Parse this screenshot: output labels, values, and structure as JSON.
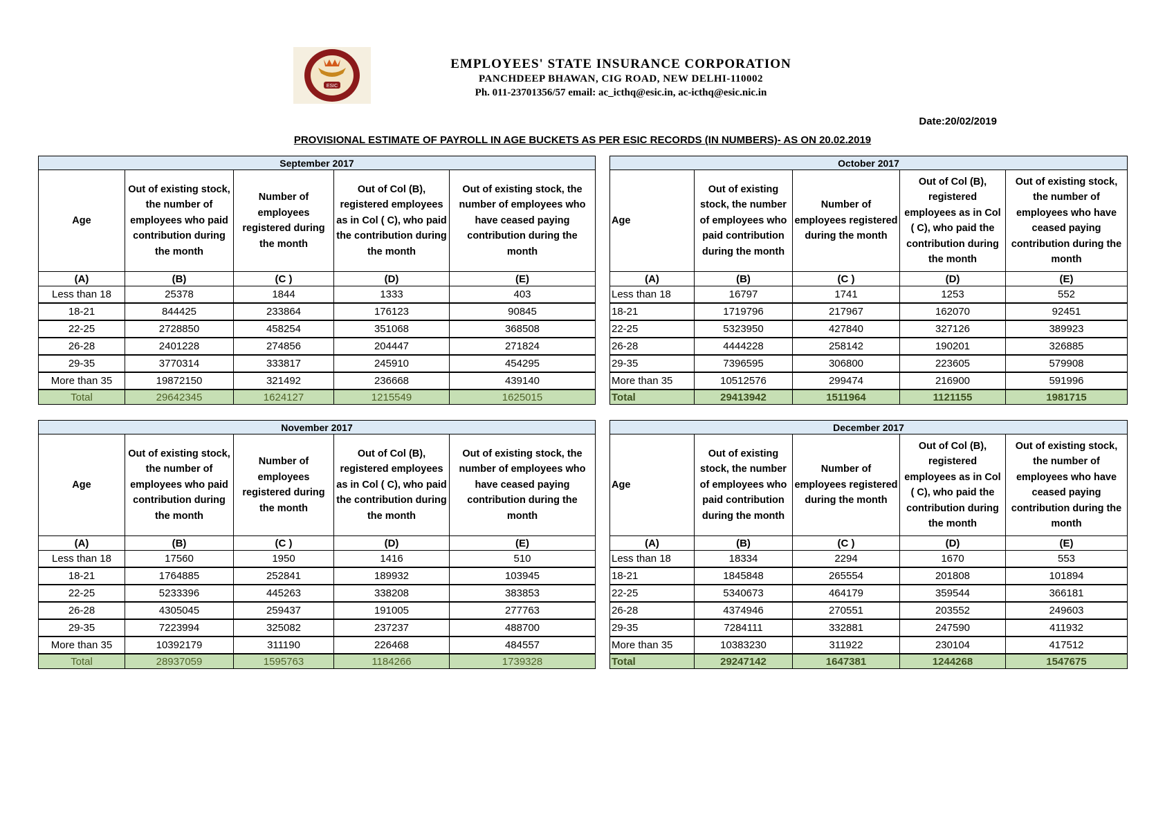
{
  "header": {
    "logo_text": "ESIC",
    "org_name": "EMPLOYEES' STATE INSURANCE CORPORATION",
    "address": "PANCHDEEP BHAWAN, CIG ROAD, NEW DELHI-110002",
    "contact": "Ph. 011-23701356/57 email: ac_icthq@esic.in, ac-icthq@esic.nic.in",
    "date": "Date:20/02/2019",
    "title": "PROVISIONAL ESTIMATE OF PAYROLL IN AGE BUCKETS AS PER ESIC RECORDS (IN NUMBERS)- AS ON 20.02.2019"
  },
  "columns_left": [
    "Age",
    "Out of existing stock, the number of employees who paid contribution during the month",
    "Number of employees registered during the month",
    "Out of Col (B), registered employees as in Col ( C), who paid the contribution during the month",
    "Out of existing stock, the number of  employees who have ceased paying contribution during the month"
  ],
  "columns_right": [
    "Age",
    "Out of existing stock, the number of employees who paid contribution during the month",
    "Number of employees registered during the month",
    "Out of Col (B), registered employees as in Col ( C), who paid the contribution during the month",
    "Out of existing stock, the number of employees  who have ceased paying contribution during the month"
  ],
  "letters": [
    "(A)",
    "(B)",
    "(C )",
    "(D)",
    "(E)"
  ],
  "tables": [
    {
      "month": "September 2017",
      "rows": [
        [
          "Less than 18",
          "25378",
          "1844",
          "1333",
          "403"
        ],
        [
          "18-21",
          "844425",
          "233864",
          "176123",
          "90845"
        ],
        [
          "22-25",
          "2728850",
          "458254",
          "351068",
          "368508"
        ],
        [
          "26-28",
          "2401228",
          "274856",
          "204447",
          "271824"
        ],
        [
          "29-35",
          "3770314",
          "333817",
          "245910",
          "454295"
        ],
        [
          "More than 35",
          "19872150",
          "321492",
          "236668",
          "439140"
        ]
      ],
      "total": [
        "Total",
        "29642345",
        "1624127",
        "1215549",
        "1625015"
      ]
    },
    {
      "month": "October 2017",
      "rows": [
        [
          "Less than 18",
          "16797",
          "1741",
          "1253",
          "552"
        ],
        [
          "18-21",
          "1719796",
          "217967",
          "162070",
          "92451"
        ],
        [
          "22-25",
          "5323950",
          "427840",
          "327126",
          "389923"
        ],
        [
          "26-28",
          "4444228",
          "258142",
          "190201",
          "326885"
        ],
        [
          "29-35",
          "7396595",
          "306800",
          "223605",
          "579908"
        ],
        [
          "More than 35",
          "10512576",
          "299474",
          "216900",
          "591996"
        ]
      ],
      "total": [
        "Total",
        "29413942",
        "1511964",
        "1121155",
        "1981715"
      ]
    },
    {
      "month": "November 2017",
      "rows": [
        [
          "Less than 18",
          "17560",
          "1950",
          "1416",
          "510"
        ],
        [
          "18-21",
          "1764885",
          "252841",
          "189932",
          "103945"
        ],
        [
          "22-25",
          "5233396",
          "445263",
          "338208",
          "383853"
        ],
        [
          "26-28",
          "4305045",
          "259437",
          "191005",
          "277763"
        ],
        [
          "29-35",
          "7223994",
          "325082",
          "237237",
          "488700"
        ],
        [
          "More than 35",
          "10392179",
          "311190",
          "226468",
          "484557"
        ]
      ],
      "total": [
        "Total",
        "28937059",
        "1595763",
        "1184266",
        "1739328"
      ]
    },
    {
      "month": "December 2017",
      "rows": [
        [
          "Less than 18",
          "18334",
          "2294",
          "1670",
          "553"
        ],
        [
          "18-21",
          "1845848",
          "265554",
          "201808",
          "101894"
        ],
        [
          "22-25",
          "5340673",
          "464179",
          "359544",
          "366181"
        ],
        [
          "26-28",
          "4374946",
          "270551",
          "203552",
          "249603"
        ],
        [
          "29-35",
          "7284111",
          "332881",
          "247590",
          "411932"
        ],
        [
          "More than 35",
          "10383230",
          "311922",
          "230104",
          "417512"
        ]
      ],
      "total": [
        "Total",
        "29247142",
        "1647381",
        "1244268",
        "1547675"
      ]
    }
  ],
  "colors": {
    "month_header_bg": "#dce9f5",
    "total_bg": "#c6dfb4",
    "logo": "#8b1a1a"
  }
}
